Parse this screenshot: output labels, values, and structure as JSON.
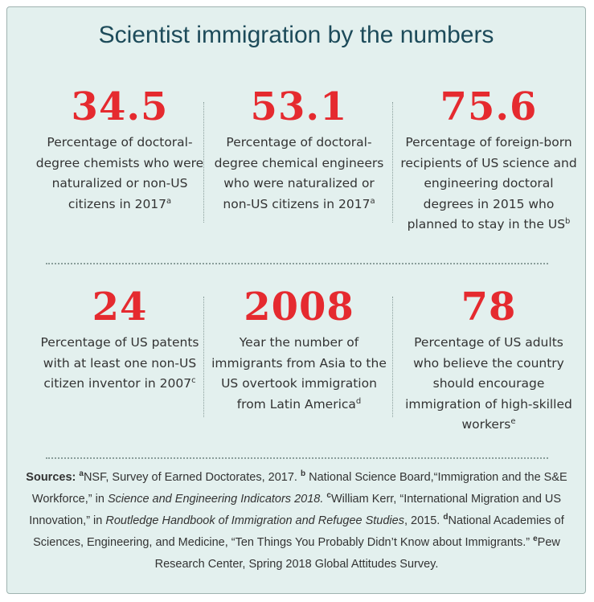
{
  "title": "Scientist immigration by the numbers",
  "stats": [
    {
      "number": "34.5",
      "text": "Percentage of doctoral-degree chemists who were naturalized or non-US citizens in 2017",
      "note": "a"
    },
    {
      "number": "53.1",
      "text": "Percentage of doctoral-degree chemical engineers who were naturalized or non-US citizens in 2017",
      "note": "a"
    },
    {
      "number": "75.6",
      "text": "Percentage of foreign-born recipients of US science and engineering doctoral degrees in 2015 who planned to stay in the US",
      "note": "b"
    },
    {
      "number": "24",
      "text": "Percentage of US patents with at least one non-US citizen inventor in 2007",
      "note": "c"
    },
    {
      "number": "2008",
      "text": "Year the number of immigrants from Asia to the US overtook immigration from Latin America",
      "note": "d"
    },
    {
      "number": "78",
      "text": "Percentage of US adults who believe the country should encourage immigration of high-skilled workers",
      "note": "e"
    }
  ],
  "sources": {
    "label": "Sources:",
    "a_mark": "a",
    "a_text": "NSF, Survey of Earned Doctorates, 2017.",
    "b_mark": "b",
    "b_text_1": "National Science Board,“Immigration and the S&E Workforce,” in",
    "b_title": "Science and Engineering Indicators 2018.",
    "c_mark": "c",
    "c_text_1": "William Kerr, “International Migration and US Innovation,” in",
    "c_title": "Routledge Handbook of Immigration and Refugee Studies",
    "c_text_2": ", 2015.",
    "d_mark": "d",
    "d_text": "National Academies of Sciences, Engineering, and Medicine, “Ten Things You Probably Didn’t Know about Immigrants.”",
    "e_mark": "e",
    "e_text": "Pew Research Center, Spring 2018 Global Attitudes Survey."
  }
}
